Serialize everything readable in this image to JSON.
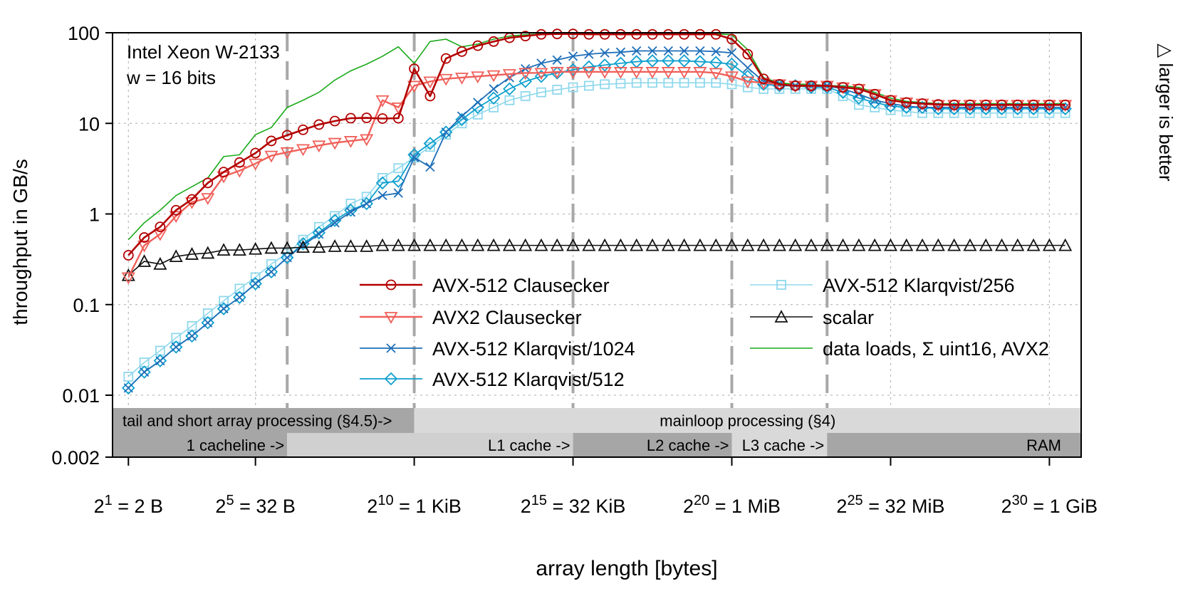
{
  "chart_data": {
    "type": "line",
    "title": "",
    "annotation_lines": [
      "Intel Xeon W-2133",
      "w = 16 bits"
    ],
    "side_note": "△ larger is better",
    "xlabel": "array length [bytes]",
    "ylabel": "throughput in GB/s",
    "x_scale": "log2",
    "y_scale": "log10",
    "xlim_log2": [
      0.5,
      31.0
    ],
    "ylim": [
      0.002,
      100
    ],
    "x_ticks": [
      {
        "pow": 1,
        "base": "2",
        "exp": "1",
        "suffix": " = 2 B"
      },
      {
        "pow": 5,
        "base": "2",
        "exp": "5",
        "suffix": " = 32 B"
      },
      {
        "pow": 10,
        "base": "2",
        "exp": "10",
        "suffix": " = 1 KiB"
      },
      {
        "pow": 15,
        "base": "2",
        "exp": "15",
        "suffix": " = 32 KiB"
      },
      {
        "pow": 20,
        "base": "2",
        "exp": "20",
        "suffix": " = 1 MiB"
      },
      {
        "pow": 25,
        "base": "2",
        "exp": "25",
        "suffix": " = 32 MiB"
      },
      {
        "pow": 30,
        "base": "2",
        "exp": "30",
        "suffix": " = 1 GiB"
      }
    ],
    "y_ticks": [
      {
        "value": 0.002,
        "label": "0.002"
      },
      {
        "value": 0.01,
        "label": "0.01"
      },
      {
        "value": 0.1,
        "label": "0.1"
      },
      {
        "value": 1,
        "label": "1"
      },
      {
        "value": 10,
        "label": "10"
      },
      {
        "value": 100,
        "label": "100"
      }
    ],
    "boundaries_log2": [
      6,
      10,
      15,
      20,
      23
    ],
    "band_rows": [
      {
        "segments": [
          {
            "from": 0.5,
            "to": 10,
            "shade": "#a6a6a6",
            "text": "tail and short array processing (§4.5)->",
            "align": "left"
          },
          {
            "from": 10,
            "to": 31,
            "shade": "#d9d9d9",
            "text": "mainloop processing (§4)",
            "align": "center"
          }
        ]
      },
      {
        "segments": [
          {
            "from": 0.5,
            "to": 6,
            "shade": "#a6a6a6",
            "text": "1 cacheline ->",
            "align": "right"
          },
          {
            "from": 6,
            "to": 15,
            "shade": "#d0d0d0",
            "text": "L1 cache ->",
            "align": "right"
          },
          {
            "from": 15,
            "to": 20,
            "shade": "#a6a6a6",
            "text": "L2 cache ->",
            "align": "right"
          },
          {
            "from": 20,
            "to": 23,
            "shade": "#d9d9d9",
            "text": "L3 cache ->",
            "align": "right"
          },
          {
            "from": 23,
            "to": 31,
            "shade": "#a6a6a6",
            "text": "RAM",
            "align": "right"
          }
        ]
      }
    ],
    "series": [
      {
        "name": "AVX-512 Clausecker",
        "color": "#b30000",
        "marker": "circle",
        "width": 2.6,
        "x": [
          1,
          1.5,
          2,
          2.5,
          3,
          3.5,
          4,
          4.5,
          5,
          5.5,
          6,
          6.5,
          7,
          7.5,
          8,
          8.5,
          9,
          9.5,
          10,
          10.5,
          11,
          11.5,
          12,
          12.5,
          13,
          13.5,
          14,
          14.5,
          15,
          15.5,
          16,
          16.5,
          17,
          17.5,
          18,
          18.5,
          19,
          19.5,
          20,
          20.5,
          21,
          21.5,
          22,
          22.5,
          23,
          23.5,
          24,
          24.5,
          25,
          25.5,
          26,
          26.5,
          27,
          27.5,
          28,
          28.5,
          29,
          29.5,
          30,
          30.5
        ],
        "y": [
          0.35,
          0.55,
          0.72,
          1.1,
          1.45,
          2.2,
          2.9,
          3.7,
          4.7,
          6.4,
          7.4,
          8.5,
          9.7,
          10.6,
          11.4,
          11.5,
          11.3,
          11.4,
          40,
          20,
          52,
          62,
          72,
          80,
          88,
          92,
          96,
          97,
          97,
          96,
          96,
          96,
          96,
          96,
          96,
          96,
          96,
          96,
          85,
          58,
          31,
          27,
          26,
          26,
          26,
          25,
          24,
          21,
          18,
          17,
          16.5,
          16.2,
          16,
          16,
          16,
          16,
          16,
          16,
          16,
          16
        ]
      },
      {
        "name": "AVX2 Clausecker",
        "color": "#f0605a",
        "marker": "tri-down",
        "width": 2.4,
        "x": [
          1,
          1.5,
          2,
          2.5,
          3,
          3.5,
          4,
          4.5,
          5,
          5.5,
          6,
          6.5,
          7,
          7.5,
          8,
          8.5,
          9,
          9.5,
          10,
          10.5,
          11,
          11.5,
          12,
          12.5,
          13,
          13.5,
          14,
          14.5,
          15,
          15.5,
          16,
          16.5,
          17,
          17.5,
          18,
          18.5,
          19,
          19.5,
          20,
          20.5,
          21,
          21.5,
          22,
          22.5,
          23,
          23.5,
          24,
          24.5,
          25,
          25.5,
          26,
          26.5,
          27,
          27.5,
          28,
          28.5,
          29,
          29.5,
          30,
          30.5
        ],
        "y": [
          0.2,
          0.45,
          0.6,
          0.95,
          1.35,
          1.5,
          2.6,
          3.0,
          3.6,
          4.4,
          4.8,
          5.2,
          5.7,
          6.1,
          6.4,
          6.7,
          18,
          15,
          26,
          29,
          31,
          32,
          33,
          34,
          35,
          36,
          36,
          37,
          37,
          37,
          37,
          37,
          37,
          37,
          37,
          37,
          37,
          36,
          33,
          29,
          28,
          27,
          26,
          26,
          26,
          25,
          24,
          21,
          18,
          17,
          16.5,
          16,
          16,
          16,
          16,
          16,
          16,
          16,
          16,
          16
        ]
      },
      {
        "name": "AVX-512 Klarqvist/1024",
        "color": "#1f6fb8",
        "marker": "x",
        "width": 1.8,
        "x": [
          1,
          1.5,
          2,
          2.5,
          3,
          3.5,
          4,
          4.5,
          5,
          5.5,
          6,
          6.5,
          7,
          7.5,
          8,
          8.5,
          9,
          9.5,
          10,
          10.5,
          11,
          11.5,
          12,
          12.5,
          13,
          13.5,
          14,
          14.5,
          15,
          15.5,
          16,
          16.5,
          17,
          17.5,
          18,
          18.5,
          19,
          19.5,
          20,
          20.5,
          21,
          21.5,
          22,
          22.5,
          23,
          23.5,
          24,
          24.5,
          25,
          25.5,
          26,
          26.5,
          27,
          27.5,
          28,
          28.5,
          29,
          29.5,
          30,
          30.5
        ],
        "y": [
          0.012,
          0.018,
          0.024,
          0.034,
          0.045,
          0.063,
          0.09,
          0.12,
          0.17,
          0.23,
          0.33,
          0.45,
          0.6,
          0.8,
          1.05,
          1.3,
          1.6,
          1.7,
          4.2,
          3.3,
          8,
          12,
          17,
          24,
          32,
          40,
          46,
          50,
          55,
          58,
          60,
          61,
          63,
          63,
          63,
          63,
          63,
          62,
          60,
          41,
          29,
          27,
          26,
          26,
          26,
          24,
          21,
          18,
          16.5,
          15.5,
          15,
          15,
          15,
          15,
          15,
          15,
          15,
          15,
          15,
          15
        ]
      },
      {
        "name": "AVX-512 Klarqvist/512",
        "color": "#10a0cf",
        "marker": "diamond",
        "width": 1.8,
        "x": [
          1,
          1.5,
          2,
          2.5,
          3,
          3.5,
          4,
          4.5,
          5,
          5.5,
          6,
          6.5,
          7,
          7.5,
          8,
          8.5,
          9,
          9.5,
          10,
          10.5,
          11,
          11.5,
          12,
          12.5,
          13,
          13.5,
          14,
          14.5,
          15,
          15.5,
          16,
          16.5,
          17,
          17.5,
          18,
          18.5,
          19,
          19.5,
          20,
          20.5,
          21,
          21.5,
          22,
          22.5,
          23,
          23.5,
          24,
          24.5,
          25,
          25.5,
          26,
          26.5,
          27,
          27.5,
          28,
          28.5,
          29,
          29.5,
          30,
          30.5
        ],
        "y": [
          0.012,
          0.018,
          0.024,
          0.034,
          0.045,
          0.063,
          0.09,
          0.12,
          0.17,
          0.23,
          0.33,
          0.47,
          0.62,
          0.85,
          1.1,
          1.3,
          2.2,
          2.3,
          4.5,
          6.0,
          8,
          11,
          15,
          19,
          24,
          29,
          33,
          36,
          39,
          42,
          44,
          46,
          48,
          49,
          49,
          49,
          48,
          47,
          45,
          33,
          27,
          26,
          26,
          25,
          25,
          22,
          19,
          17,
          15.5,
          15,
          15,
          14.5,
          14.5,
          14.5,
          14.5,
          14.5,
          14.5,
          14.5,
          14.5,
          14.5
        ]
      },
      {
        "name": "AVX-512 Klarqvist/256",
        "color": "#8fd8ec",
        "marker": "square",
        "width": 1.6,
        "x": [
          1,
          1.5,
          2,
          2.5,
          3,
          3.5,
          4,
          4.5,
          5,
          5.5,
          6,
          6.5,
          7,
          7.5,
          8,
          8.5,
          9,
          9.5,
          10,
          10.5,
          11,
          11.5,
          12,
          12.5,
          13,
          13.5,
          14,
          14.5,
          15,
          15.5,
          16,
          16.5,
          17,
          17.5,
          18,
          18.5,
          19,
          19.5,
          20,
          20.5,
          21,
          21.5,
          22,
          22.5,
          23,
          23.5,
          24,
          24.5,
          25,
          25.5,
          26,
          26.5,
          27,
          27.5,
          28,
          28.5,
          29,
          29.5,
          30,
          30.5
        ],
        "y": [
          0.016,
          0.023,
          0.031,
          0.043,
          0.058,
          0.08,
          0.11,
          0.15,
          0.2,
          0.28,
          0.37,
          0.52,
          0.72,
          0.95,
          1.3,
          1.55,
          2.5,
          3.2,
          4.2,
          5.5,
          7.5,
          10,
          12.5,
          15,
          18,
          20,
          22,
          23.5,
          25,
          26,
          27,
          27.5,
          28,
          28,
          28,
          28,
          28,
          28,
          27,
          25,
          24,
          24,
          24,
          24,
          24,
          20,
          16,
          15,
          14,
          13.5,
          13,
          13,
          13,
          13,
          13,
          13,
          13,
          13,
          13,
          13
        ]
      },
      {
        "name": "scalar",
        "color": "#111111",
        "marker": "tri-up",
        "width": 1.6,
        "x": [
          1,
          1.5,
          2,
          2.5,
          3,
          3.5,
          4,
          4.5,
          5,
          5.5,
          6,
          6.5,
          7,
          7.5,
          8,
          8.5,
          9,
          9.5,
          10,
          10.5,
          11,
          11.5,
          12,
          12.5,
          13,
          13.5,
          14,
          14.5,
          15,
          15.5,
          16,
          16.5,
          17,
          17.5,
          18,
          18.5,
          19,
          19.5,
          20,
          20.5,
          21,
          21.5,
          22,
          22.5,
          23,
          23.5,
          24,
          24.5,
          25,
          25.5,
          26,
          26.5,
          27,
          27.5,
          28,
          28.5,
          29,
          29.5,
          30,
          30.5
        ],
        "y": [
          0.21,
          0.3,
          0.28,
          0.34,
          0.36,
          0.37,
          0.4,
          0.4,
          0.41,
          0.42,
          0.42,
          0.43,
          0.43,
          0.44,
          0.44,
          0.44,
          0.45,
          0.45,
          0.45,
          0.45,
          0.45,
          0.45,
          0.45,
          0.45,
          0.45,
          0.45,
          0.45,
          0.45,
          0.45,
          0.45,
          0.45,
          0.45,
          0.45,
          0.45,
          0.45,
          0.45,
          0.45,
          0.45,
          0.45,
          0.45,
          0.45,
          0.45,
          0.45,
          0.45,
          0.45,
          0.45,
          0.45,
          0.45,
          0.45,
          0.45,
          0.45,
          0.45,
          0.45,
          0.45,
          0.45,
          0.45,
          0.45,
          0.45,
          0.45,
          0.45
        ]
      },
      {
        "name": "data loads, Σ uint16, AVX2",
        "color": "#1aaa1a",
        "marker": "none",
        "width": 1.6,
        "x": [
          1,
          1.5,
          2,
          2.5,
          3,
          3.5,
          4,
          4.5,
          5,
          5.5,
          6,
          6.5,
          7,
          7.5,
          8,
          8.5,
          9,
          9.5,
          10,
          10.5,
          11,
          11.5,
          12,
          12.5,
          13,
          13.5,
          14,
          14.5,
          15,
          15.5,
          16,
          16.5,
          17,
          17.5,
          18,
          18.5,
          19,
          19.5,
          20,
          20.5,
          21,
          21.5,
          22,
          22.5,
          23,
          23.5,
          24,
          24.5,
          25,
          25.5,
          26,
          26.5,
          27,
          27.5,
          28,
          28.5,
          29,
          29.5,
          30,
          30.5
        ],
        "y": [
          0.52,
          0.8,
          1.1,
          1.6,
          2.0,
          2.5,
          4.3,
          4.5,
          7.5,
          9,
          15,
          18,
          22,
          30,
          38,
          45,
          55,
          70,
          46,
          80,
          85,
          70,
          75,
          85,
          92,
          95,
          97,
          97,
          97,
          97,
          97,
          97,
          97,
          97,
          97,
          97,
          97,
          97,
          95,
          65,
          32,
          28,
          27,
          27,
          26,
          26,
          25,
          22,
          19,
          17.5,
          17,
          16.5,
          16.5,
          16.5,
          16.5,
          16.5,
          16.5,
          16.5,
          16.5,
          16.5
        ]
      }
    ]
  }
}
